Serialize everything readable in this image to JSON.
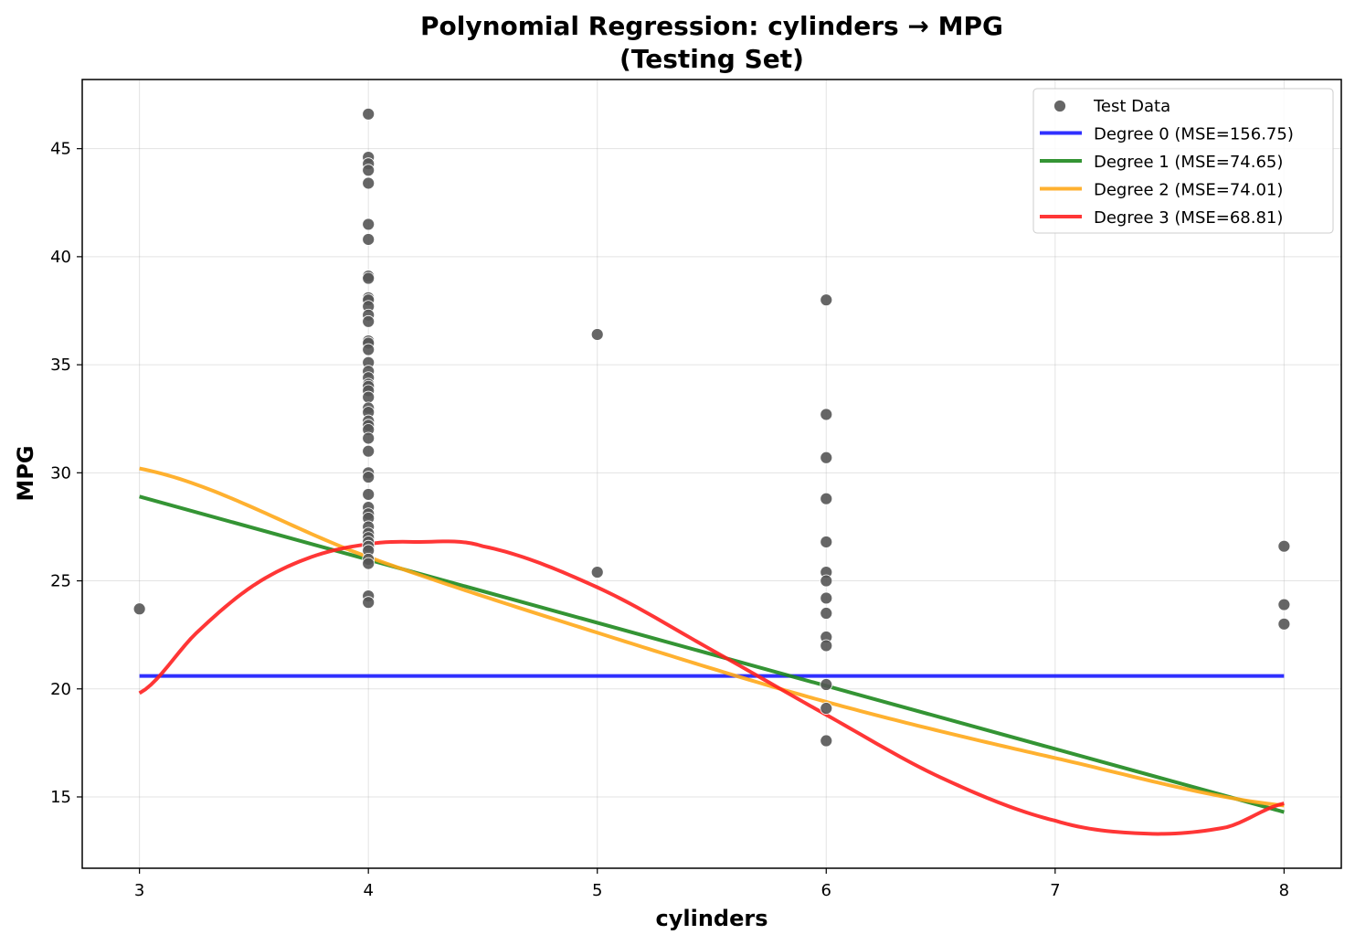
{
  "chart_data": {
    "type": "scatter",
    "title": "Polynomial Regression: cylinders → MPG",
    "subtitle": "(Testing Set)",
    "xlabel": "cylinders",
    "ylabel": "MPG",
    "xlim": [
      2.75,
      8.25
    ],
    "ylim": [
      11.7,
      48.2
    ],
    "xticks": [
      3,
      4,
      5,
      6,
      7,
      8
    ],
    "yticks": [
      15,
      20,
      25,
      30,
      35,
      40,
      45
    ],
    "grid": true,
    "legend_position": "top-right",
    "scatter": {
      "name": "Test Data",
      "color": "#555555",
      "points": [
        [
          3,
          23.7
        ],
        [
          4,
          46.6
        ],
        [
          4,
          44.6
        ],
        [
          4,
          44.3
        ],
        [
          4,
          44.0
        ],
        [
          4,
          43.4
        ],
        [
          4,
          41.5
        ],
        [
          4,
          40.8
        ],
        [
          4,
          39.1
        ],
        [
          4,
          39.0
        ],
        [
          4,
          38.1
        ],
        [
          4,
          38.0
        ],
        [
          4,
          37.7
        ],
        [
          4,
          37.3
        ],
        [
          4,
          37.0
        ],
        [
          4,
          36.1
        ],
        [
          4,
          36.0
        ],
        [
          4,
          35.7
        ],
        [
          4,
          35.1
        ],
        [
          4,
          34.7
        ],
        [
          4,
          34.4
        ],
        [
          4,
          34.1
        ],
        [
          4,
          34.0
        ],
        [
          4,
          33.8
        ],
        [
          4,
          33.5
        ],
        [
          4,
          33.0
        ],
        [
          4,
          32.8
        ],
        [
          4,
          32.4
        ],
        [
          4,
          32.2
        ],
        [
          4,
          32.0
        ],
        [
          4,
          31.6
        ],
        [
          4,
          31.0
        ],
        [
          4,
          30.0
        ],
        [
          4,
          29.8
        ],
        [
          4,
          29.0
        ],
        [
          4,
          28.4
        ],
        [
          4,
          28.1
        ],
        [
          4,
          27.9
        ],
        [
          4,
          27.5
        ],
        [
          4,
          27.2
        ],
        [
          4,
          27.0
        ],
        [
          4,
          26.8
        ],
        [
          4,
          26.6
        ],
        [
          4,
          26.4
        ],
        [
          4,
          26.0
        ],
        [
          4,
          25.8
        ],
        [
          4,
          24.3
        ],
        [
          4,
          24.0
        ],
        [
          5,
          36.4
        ],
        [
          5,
          25.4
        ],
        [
          6,
          38.0
        ],
        [
          6,
          32.7
        ],
        [
          6,
          30.7
        ],
        [
          6,
          28.8
        ],
        [
          6,
          26.8
        ],
        [
          6,
          25.4
        ],
        [
          6,
          25.0
        ],
        [
          6,
          24.2
        ],
        [
          6,
          23.5
        ],
        [
          6,
          22.4
        ],
        [
          6,
          22.0
        ],
        [
          6,
          20.2
        ],
        [
          6,
          19.1
        ],
        [
          6,
          17.6
        ],
        [
          8,
          26.6
        ],
        [
          8,
          23.9
        ],
        [
          8,
          23.0
        ]
      ]
    },
    "series": [
      {
        "name": "Degree 0 (MSE=156.75)",
        "color": "#1a1aff",
        "degree": 0,
        "x": [
          3,
          8
        ],
        "y": [
          20.6,
          20.6
        ]
      },
      {
        "name": "Degree 1 (MSE=74.65)",
        "color": "#1e881e",
        "degree": 1,
        "x": [
          3,
          8
        ],
        "y": [
          28.9,
          14.3
        ]
      },
      {
        "name": "Degree 2 (MSE=74.01)",
        "color": "#ffa81a",
        "degree": 2,
        "x": [
          3,
          4,
          5,
          6,
          7,
          8
        ],
        "y": [
          30.2,
          26.1,
          22.6,
          19.4,
          16.8,
          14.6
        ]
      },
      {
        "name": "Degree 3 (MSE=68.81)",
        "color": "#ff2020",
        "degree": 3,
        "x": [
          3,
          3.25,
          3.5,
          3.75,
          4,
          4.2,
          4.5,
          5,
          5.5,
          6,
          6.5,
          7,
          7.4,
          7.75,
          8
        ],
        "y": [
          19.8,
          22.6,
          24.8,
          26.1,
          26.7,
          26.8,
          26.6,
          24.7,
          21.8,
          18.8,
          15.9,
          13.9,
          13.3,
          13.6,
          14.7
        ]
      }
    ]
  }
}
